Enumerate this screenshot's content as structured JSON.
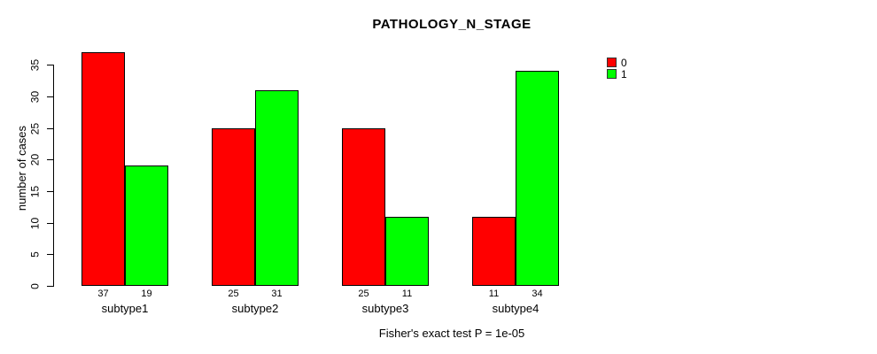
{
  "title": "PATHOLOGY_N_STAGE",
  "caption": "Fisher's exact test P = 1e-05",
  "legend": {
    "items": [
      {
        "label": "0",
        "color": "#ff0000"
      },
      {
        "label": "1",
        "color": "#00ff00"
      }
    ]
  },
  "chart_data": {
    "type": "bar",
    "title": "PATHOLOGY_N_STAGE",
    "xlabel": "",
    "ylabel": "number of cases",
    "categories": [
      "subtype1",
      "subtype2",
      "subtype3",
      "subtype4"
    ],
    "series": [
      {
        "name": "0",
        "color": "#ff0000",
        "values": [
          37,
          25,
          25,
          11
        ]
      },
      {
        "name": "1",
        "color": "#00ff00",
        "values": [
          19,
          31,
          11,
          34
        ]
      }
    ],
    "bar_value_labels": [
      [
        37,
        19
      ],
      [
        25,
        31
      ],
      [
        25,
        11
      ],
      [
        11,
        34
      ]
    ],
    "yticks": [
      0,
      5,
      10,
      15,
      20,
      25,
      30,
      35
    ],
    "ylim": [
      0,
      37
    ],
    "grid": false,
    "legend_position": "top-right",
    "annotation": "Fisher's exact test P = 1e-05"
  }
}
